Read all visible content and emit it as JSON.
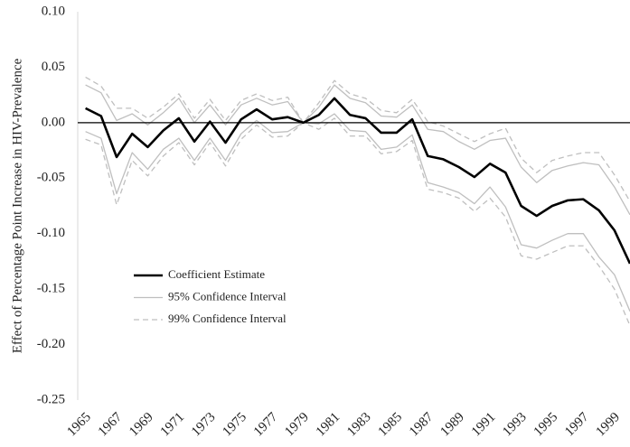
{
  "chart_data": {
    "type": "line",
    "y_label": "Effect of Percentage Point Increase in HIV-Prevalence",
    "categories": [
      "1965",
      null,
      "1967",
      null,
      "1969",
      null,
      "1971",
      null,
      "1973",
      null,
      "1975",
      null,
      "1977",
      null,
      "1979",
      null,
      "1981",
      null,
      "1983",
      null,
      "1985",
      null,
      "1987",
      null,
      "1989",
      null,
      "1991",
      null,
      "1993",
      null,
      "1995",
      null,
      "1997",
      null,
      "1999",
      null
    ],
    "ylim": [
      -0.25,
      0.1
    ],
    "yticks": [
      {
        "value": 0.1,
        "label": "0.10"
      },
      {
        "value": 0.05,
        "label": "0.05"
      },
      {
        "value": 0,
        "label": "0.00"
      },
      {
        "value": -0.05,
        "label": "-0.05"
      },
      {
        "value": -0.1,
        "label": "-0.10"
      },
      {
        "value": -0.15,
        "label": "-0.15"
      },
      {
        "value": -0.2,
        "label": "-0.20"
      },
      {
        "value": -0.25,
        "label": "-0.25"
      }
    ],
    "legend": "lower left",
    "series": [
      {
        "name": "Coefficient Estimate",
        "color": "#000000",
        "dashed": false,
        "values": [
          0.013,
          0.006,
          -0.031,
          -0.01,
          -0.022,
          -0.007,
          0.004,
          -0.017,
          0.001,
          -0.018,
          0.003,
          0.012,
          0.003,
          0.005,
          0,
          0.007,
          0.022,
          0.007,
          0.004,
          -0.009,
          -0.009,
          0.003,
          -0.03,
          -0.033,
          -0.04,
          -0.049,
          -0.037,
          -0.045,
          -0.075,
          -0.084,
          -0.075,
          -0.07,
          -0.069,
          -0.079,
          -0.097,
          -0.127
        ]
      },
      {
        "name": "95% Confidence Interval",
        "color": "#bfbfbf",
        "dashed": false,
        "upper": [
          0.034,
          0.027,
          0.002,
          0.008,
          -0.002,
          0.009,
          0.022,
          0,
          0.016,
          -0.002,
          0.016,
          0.022,
          0.016,
          0.019,
          0,
          0.014,
          0.034,
          0.022,
          0.018,
          0.006,
          0.005,
          0.016,
          -0.006,
          -0.008,
          -0.017,
          -0.024,
          -0.016,
          -0.014,
          -0.04,
          -0.054,
          -0.043,
          -0.039,
          -0.036,
          -0.038,
          -0.058,
          -0.083
        ],
        "lower": [
          -0.008,
          -0.014,
          -0.064,
          -0.027,
          -0.042,
          -0.024,
          -0.014,
          -0.034,
          -0.014,
          -0.034,
          -0.01,
          0.002,
          -0.009,
          -0.008,
          0,
          -0.001,
          0.008,
          -0.007,
          -0.008,
          -0.024,
          -0.022,
          -0.011,
          -0.054,
          -0.058,
          -0.063,
          -0.073,
          -0.058,
          -0.076,
          -0.11,
          -0.113,
          -0.106,
          -0.1,
          -0.1,
          -0.121,
          -0.137,
          -0.17
        ]
      },
      {
        "name": "99% Confidence Interval",
        "color": "#bfbfbf",
        "dashed": true,
        "upper": [
          0.041,
          0.033,
          0.013,
          0.013,
          0.004,
          0.014,
          0.026,
          0.004,
          0.021,
          0.002,
          0.02,
          0.026,
          0.02,
          0.023,
          0,
          0.018,
          0.038,
          0.026,
          0.022,
          0.011,
          0.009,
          0.021,
          0.001,
          -0.003,
          -0.01,
          -0.017,
          -0.01,
          -0.005,
          -0.032,
          -0.045,
          -0.034,
          -0.03,
          -0.027,
          -0.027,
          -0.047,
          -0.071
        ],
        "lower": [
          -0.015,
          -0.02,
          -0.074,
          -0.034,
          -0.048,
          -0.03,
          -0.018,
          -0.038,
          -0.018,
          -0.039,
          -0.015,
          -0.002,
          -0.013,
          -0.012,
          0,
          -0.006,
          0.004,
          -0.012,
          -0.012,
          -0.028,
          -0.026,
          -0.016,
          -0.06,
          -0.063,
          -0.068,
          -0.08,
          -0.068,
          -0.085,
          -0.12,
          -0.123,
          -0.117,
          -0.111,
          -0.111,
          -0.129,
          -0.15,
          -0.183
        ]
      }
    ]
  }
}
